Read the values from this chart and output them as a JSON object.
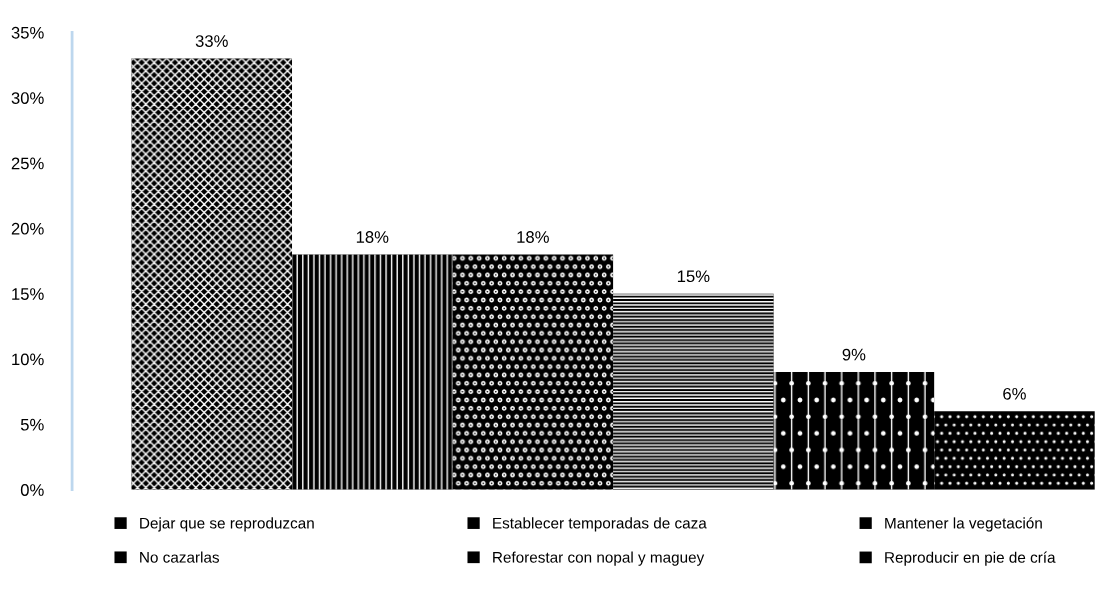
{
  "chart_data": {
    "type": "bar",
    "categories": [
      null
    ],
    "series": [
      {
        "name": "Dejar que se reproduzcan",
        "color": "#000000",
        "values": [
          33
        ],
        "value_labels": [
          "33%"
        ]
      },
      {
        "name": "Establecer temporadas de caza",
        "color": "#000000",
        "values": [
          18
        ],
        "value_labels": [
          "18%"
        ]
      },
      {
        "name": "Mantener la vegetación",
        "color": "#000000",
        "values": [
          18
        ],
        "value_labels": [
          "18%"
        ]
      },
      {
        "name": "No cazarlas",
        "color": "#000000",
        "values": [
          15
        ],
        "value_labels": [
          "15%"
        ]
      },
      {
        "name": "Reforestar con nopal y maguey",
        "color": "#000000",
        "values": [
          9
        ],
        "value_labels": [
          "9%"
        ]
      },
      {
        "name": "Reproducir en pie de cría",
        "color": "#000000",
        "values": [
          6
        ],
        "value_labels": [
          "6%"
        ]
      }
    ],
    "ylim": [
      0,
      35
    ],
    "yticks": [
      {
        "value": 0,
        "label": "0%"
      },
      {
        "value": 5,
        "label": "5%"
      },
      {
        "value": 10,
        "label": "10%"
      },
      {
        "value": 15,
        "label": "15%"
      },
      {
        "value": 20,
        "label": "20%"
      },
      {
        "value": 25,
        "label": "25%"
      },
      {
        "value": 30,
        "label": "30%"
      },
      {
        "value": 35,
        "label": "35%"
      }
    ],
    "grid": false,
    "legend": "bottom"
  }
}
